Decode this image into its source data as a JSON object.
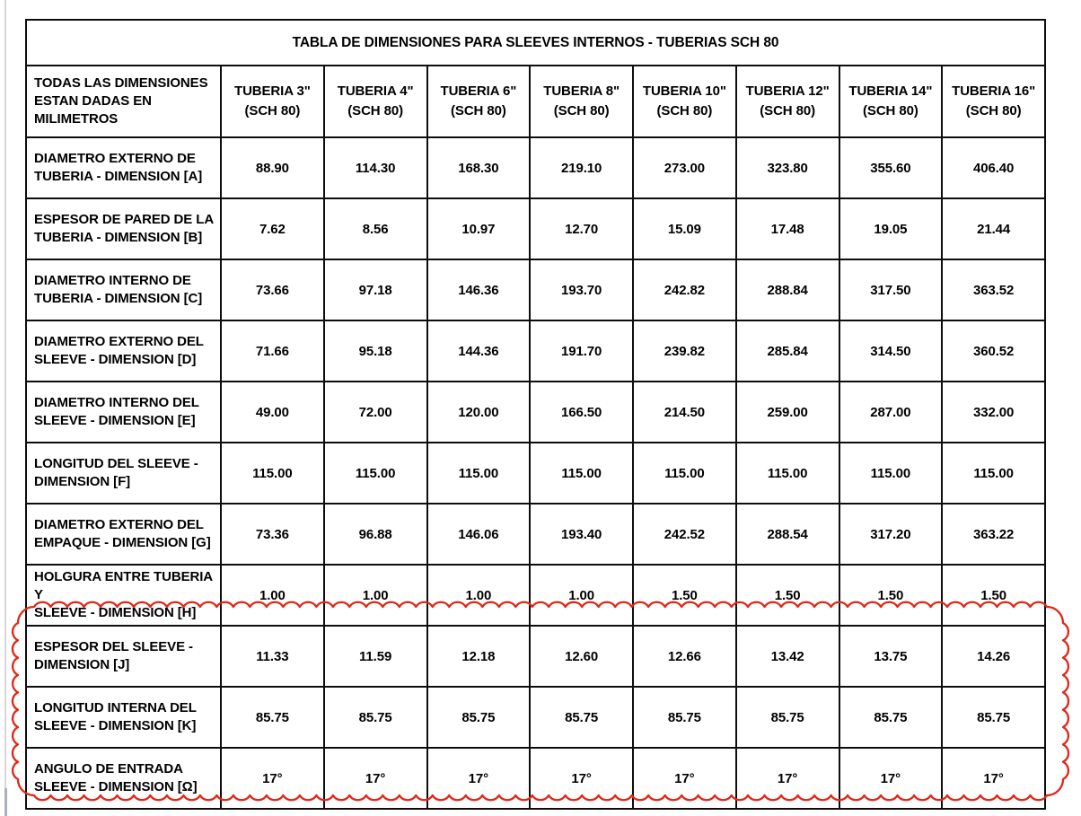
{
  "document": {
    "table": {
      "title": "TABLA DE DIMENSIONES PARA SLEEVES INTERNOS - TUBERIAS SCH 80",
      "corner_header": "TODAS LAS DIMENSIONES\nESTAN DADAS EN\nMILIMETROS",
      "column_headers": [
        "TUBERIA 3\"\n(SCH 80)",
        "TUBERIA 4\"\n(SCH 80)",
        "TUBERIA 6\"\n(SCH 80)",
        "TUBERIA 8\"\n(SCH 80)",
        "TUBERIA 10\"\n(SCH 80)",
        "TUBERIA 12\"\n(SCH 80)",
        "TUBERIA 14\"\n(SCH 80)",
        "TUBERIA 16\"\n(SCH 80)"
      ],
      "rows": [
        {
          "label": "DIAMETRO EXTERNO DE\nTUBERIA - DIMENSION [A]",
          "values": [
            "88.90",
            "114.30",
            "168.30",
            "219.10",
            "273.00",
            "323.80",
            "355.60",
            "406.40"
          ]
        },
        {
          "label": "ESPESOR DE PARED DE LA\nTUBERIA - DIMENSION [B]",
          "values": [
            "7.62",
            "8.56",
            "10.97",
            "12.70",
            "15.09",
            "17.48",
            "19.05",
            "21.44"
          ]
        },
        {
          "label": "DIAMETRO INTERNO DE\nTUBERIA - DIMENSION [C]",
          "values": [
            "73.66",
            "97.18",
            "146.36",
            "193.70",
            "242.82",
            "288.84",
            "317.50",
            "363.52"
          ]
        },
        {
          "label": "DIAMETRO EXTERNO DEL\nSLEEVE - DIMENSION [D]",
          "values": [
            "71.66",
            "95.18",
            "144.36",
            "191.70",
            "239.82",
            "285.84",
            "314.50",
            "360.52"
          ]
        },
        {
          "label": "DIAMETRO INTERNO DEL\nSLEEVE - DIMENSION [E]",
          "values": [
            "49.00",
            "72.00",
            "120.00",
            "166.50",
            "214.50",
            "259.00",
            "287.00",
            "332.00"
          ]
        },
        {
          "label": "LONGITUD DEL SLEEVE -\nDIMENSION [F]",
          "values": [
            "115.00",
            "115.00",
            "115.00",
            "115.00",
            "115.00",
            "115.00",
            "115.00",
            "115.00"
          ]
        },
        {
          "label": "DIAMETRO EXTERNO DEL\nEMPAQUE - DIMENSION [G]",
          "values": [
            "73.36",
            "96.88",
            "146.06",
            "193.40",
            "242.52",
            "288.54",
            "317.20",
            "363.22"
          ]
        },
        {
          "label": "HOLGURA ENTRE TUBERIA Y\nSLEEVE - DIMENSION [H]",
          "values": [
            "1.00",
            "1.00",
            "1.00",
            "1.00",
            "1.50",
            "1.50",
            "1.50",
            "1.50"
          ]
        },
        {
          "label": "ESPESOR DEL SLEEVE -\nDIMENSION [J]",
          "values": [
            "11.33",
            "11.59",
            "12.18",
            "12.60",
            "12.66",
            "13.42",
            "13.75",
            "14.26"
          ]
        },
        {
          "label": "LONGITUD INTERNA DEL\nSLEEVE - DIMENSION [K]",
          "values": [
            "85.75",
            "85.75",
            "85.75",
            "85.75",
            "85.75",
            "85.75",
            "85.75",
            "85.75"
          ]
        },
        {
          "label": "ANGULO DE ENTRADA\nSLEEVE - DIMENSION [Ω]",
          "values": [
            "17°",
            "17°",
            "17°",
            "17°",
            "17°",
            "17°",
            "17°",
            "17°"
          ]
        }
      ]
    },
    "annotation": {
      "type": "revision-cloud",
      "color": "#e02718",
      "highlighted_dimension_rows": [
        "J",
        "K",
        "Ω"
      ]
    }
  }
}
